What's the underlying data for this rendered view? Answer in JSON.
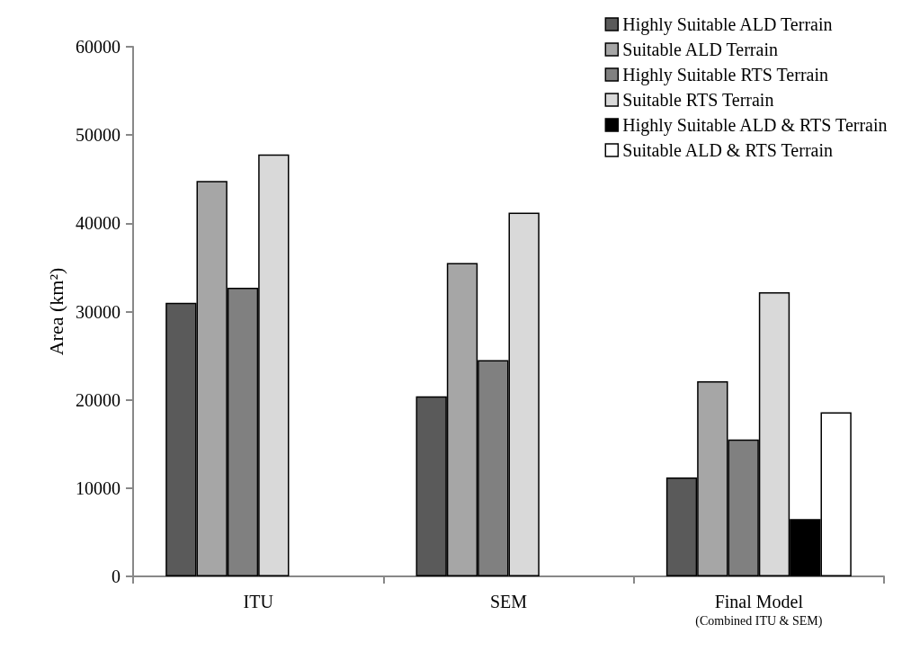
{
  "chart_data": {
    "type": "bar",
    "ylabel": "Area (km²)",
    "categories": [
      "ITU",
      "SEM",
      "Final Model\n(Combined ITU & SEM)"
    ],
    "series": [
      {
        "name": "Highly Suitable ALD Terrain",
        "color": "#5a5a5a",
        "values": [
          31000,
          20400,
          11200
        ]
      },
      {
        "name": "Suitable ALD Terrain",
        "color": "#a6a6a6",
        "values": [
          44800,
          35500,
          22100
        ]
      },
      {
        "name": "Highly Suitable RTS Terrain",
        "color": "#808080",
        "values": [
          32700,
          24500,
          15500
        ]
      },
      {
        "name": "Suitable RTS Terrain",
        "color": "#d9d9d9",
        "values": [
          47800,
          41200,
          32200
        ]
      },
      {
        "name": "Highly Suitable ALD & RTS Terrain",
        "color": "#000000",
        "values": [
          null,
          null,
          6500
        ]
      },
      {
        "name": "Suitable ALD & RTS Terrain",
        "color": "#ffffff",
        "values": [
          null,
          null,
          18600
        ]
      }
    ],
    "ylim": [
      0,
      60000
    ],
    "yticks": [
      0,
      10000,
      20000,
      30000,
      40000,
      50000,
      60000
    ],
    "grid": false,
    "legend": "top right"
  }
}
